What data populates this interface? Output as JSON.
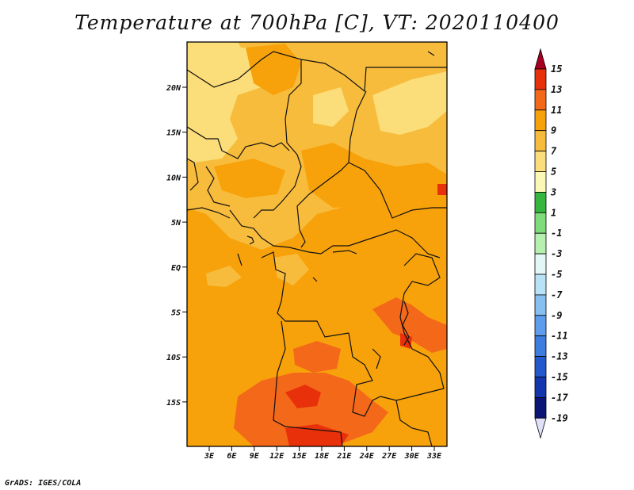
{
  "title": "Temperature at 700hPa [C], VT: 2020110400",
  "credit": "GrADS: IGES/COLA",
  "map": {
    "lat_labels": [
      "20N",
      "15N",
      "10N",
      "5N",
      "EQ",
      "5S",
      "10S",
      "15S"
    ],
    "lon_labels": [
      "3E",
      "6E",
      "9E",
      "12E",
      "15E",
      "18E",
      "21E",
      "24E",
      "27E",
      "30E",
      "33E"
    ]
  },
  "colorbar": {
    "labels": [
      "15",
      "13",
      "11",
      "9",
      "7",
      "5",
      "3",
      "1",
      "-1",
      "-3",
      "-5",
      "-7",
      "-9",
      "-11",
      "-13",
      "-15",
      "-17",
      "-19"
    ],
    "colors": [
      "#a50021",
      "#e8300a",
      "#f4681a",
      "#f7a20b",
      "#f8bc3c",
      "#fbdd79",
      "#fbf7b4",
      "#35b63e",
      "#7fdc7b",
      "#b5f0ae",
      "#e3f7f6",
      "#b8e3f6",
      "#86bff0",
      "#5e9ded",
      "#3d7de0",
      "#2259cc",
      "#1335ae",
      "#0a1577",
      "#e0e0f8"
    ]
  }
}
